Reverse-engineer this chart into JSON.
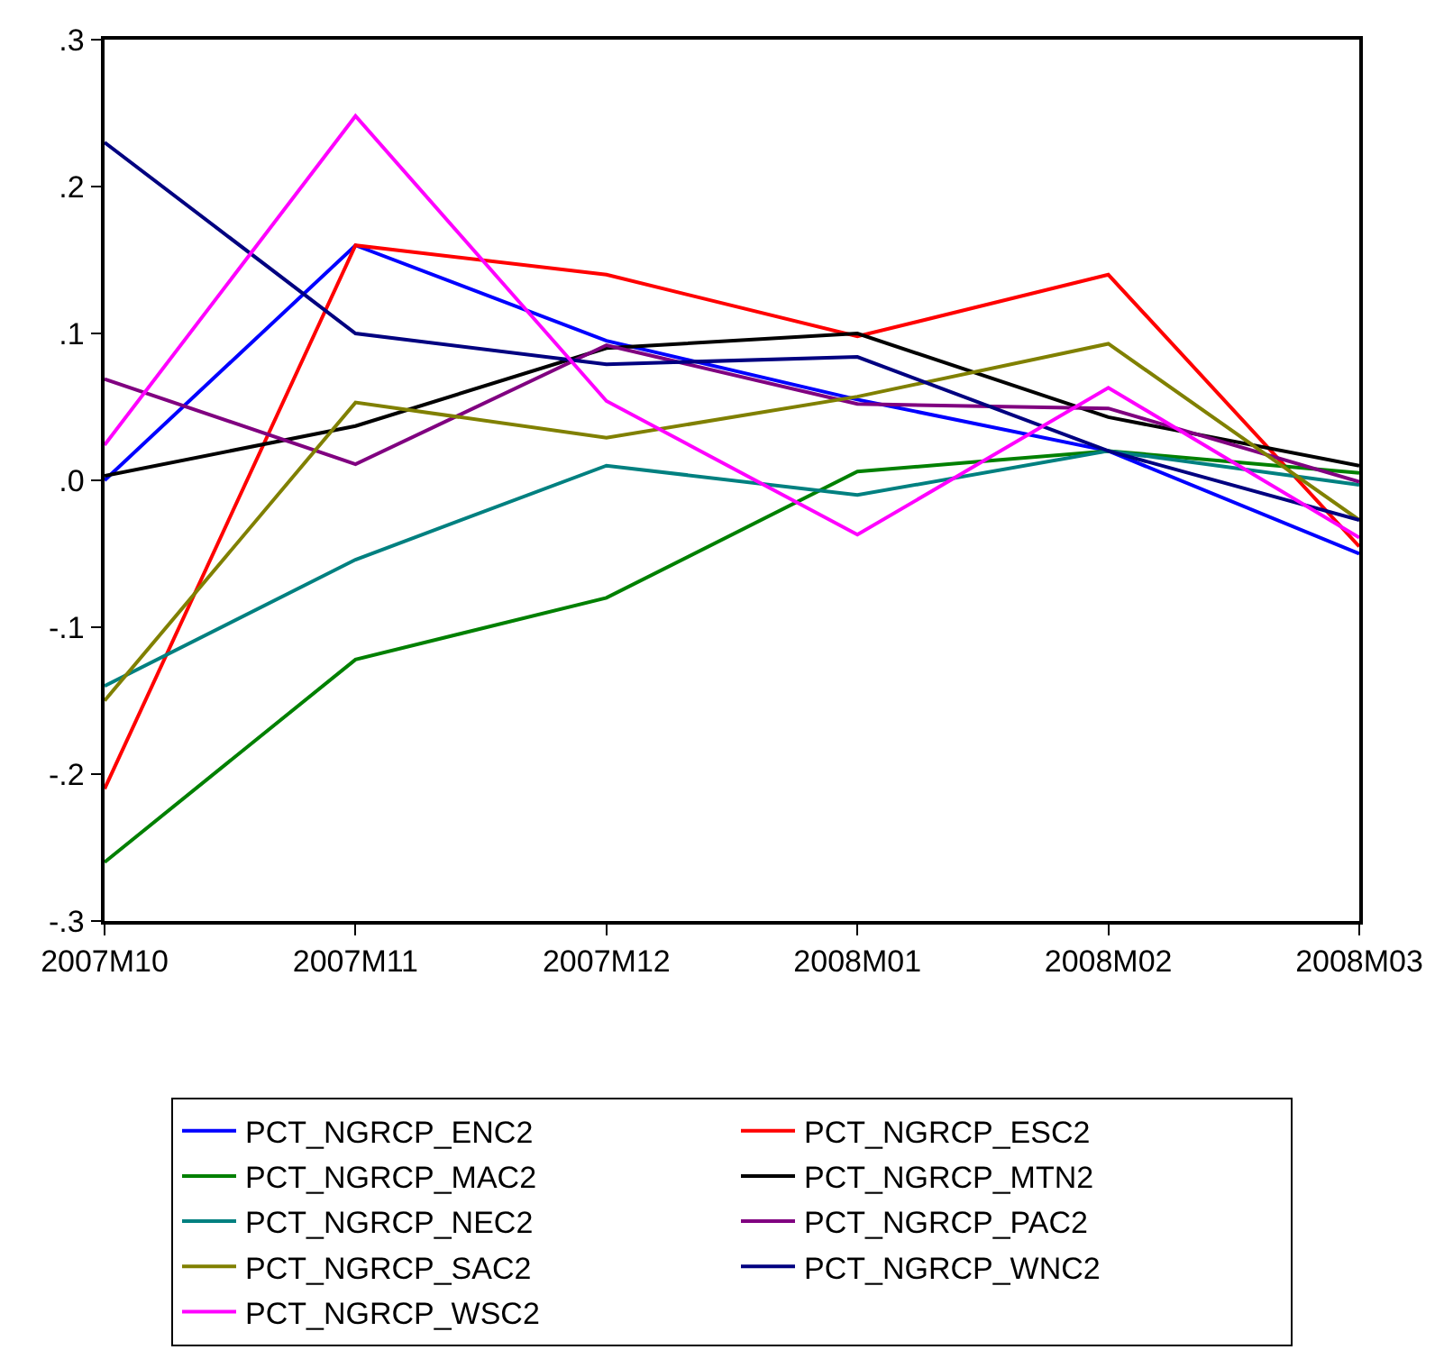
{
  "chart_data": {
    "type": "line",
    "categories": [
      "2007M10",
      "2007M11",
      "2007M12",
      "2008M01",
      "2008M02",
      "2008M03"
    ],
    "ylim": [
      -0.3,
      0.3
    ],
    "yticks": [
      {
        "value": -0.3,
        "label": "-.3"
      },
      {
        "value": -0.2,
        "label": "-.2"
      },
      {
        "value": -0.1,
        "label": "-.1"
      },
      {
        "value": 0,
        "label": ".0"
      },
      {
        "value": 0.1,
        "label": ".1"
      },
      {
        "value": 0.2,
        "label": ".2"
      },
      {
        "value": 0.3,
        "label": ".3"
      }
    ],
    "legend": "bottom",
    "marker": "none",
    "line_style": "solid",
    "series": [
      {
        "name": "PCT_NGRCP_ENC2",
        "color": "#0000ff",
        "values": [
          0.0,
          0.16,
          0.095,
          0.055,
          0.02,
          -0.05
        ]
      },
      {
        "name": "PCT_NGRCP_ESC2",
        "color": "#ff0000",
        "values": [
          -0.21,
          0.16,
          0.14,
          0.098,
          0.14,
          -0.045
        ]
      },
      {
        "name": "PCT_NGRCP_MAC2",
        "color": "#008000",
        "values": [
          -0.26,
          -0.122,
          -0.08,
          0.006,
          0.02,
          0.005
        ]
      },
      {
        "name": "PCT_NGRCP_MTN2",
        "color": "#000000",
        "values": [
          0.003,
          0.037,
          0.09,
          0.1,
          0.043,
          0.01
        ]
      },
      {
        "name": "PCT_NGRCP_NEC2",
        "color": "#008080",
        "values": [
          -0.14,
          -0.054,
          0.01,
          -0.01,
          0.02,
          -0.003
        ]
      },
      {
        "name": "PCT_NGRCP_PAC2",
        "color": "#800080",
        "values": [
          0.069,
          0.011,
          0.092,
          0.052,
          0.049,
          -0.001
        ]
      },
      {
        "name": "PCT_NGRCP_SAC2",
        "color": "#808000",
        "values": [
          -0.15,
          0.053,
          0.029,
          0.057,
          0.093,
          -0.027
        ]
      },
      {
        "name": "PCT_NGRCP_WNC2",
        "color": "#000080",
        "values": [
          0.23,
          0.1,
          0.079,
          0.084,
          0.02,
          -0.027
        ]
      },
      {
        "name": "PCT_NGRCP_WSC2",
        "color": "#ff00ff",
        "values": [
          0.024,
          0.248,
          0.054,
          -0.037,
          0.063,
          -0.039
        ]
      }
    ]
  }
}
